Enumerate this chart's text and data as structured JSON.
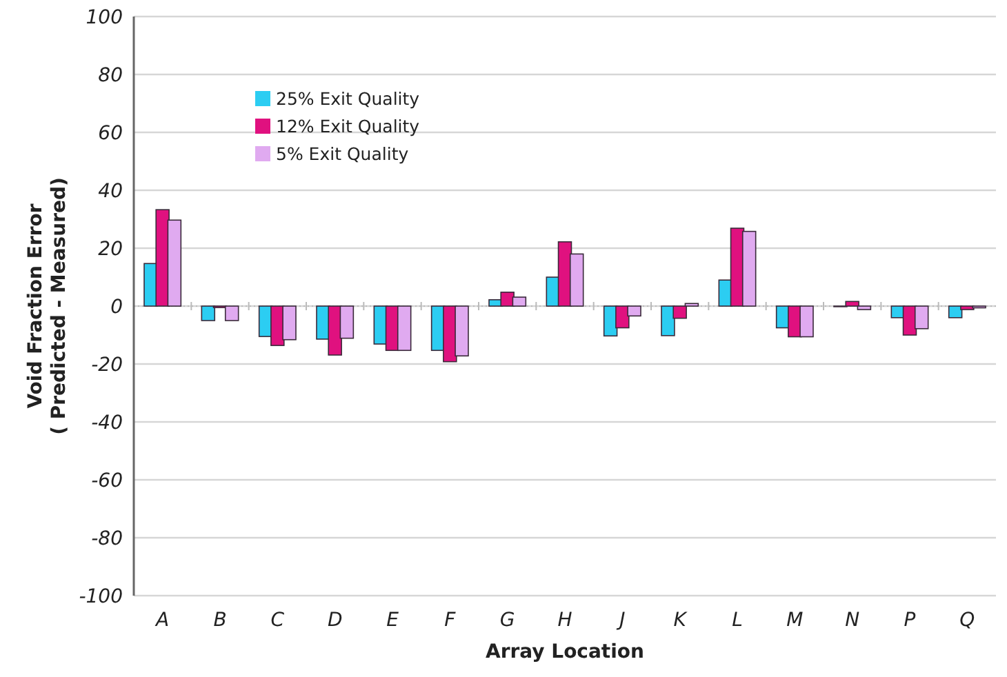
{
  "chart_data": {
    "type": "bar",
    "xlabel": "Array Location",
    "ylabel": "Void Fraction Error\n( Predicted - Measured)",
    "categories": [
      "A",
      "B",
      "C",
      "D",
      "E",
      "F",
      "G",
      "H",
      "J",
      "K",
      "L",
      "M",
      "N",
      "P",
      "Q"
    ],
    "series": [
      {
        "name": "25% Exit Quality",
        "color": "#2ccdf2",
        "values": [
          14.7,
          -5,
          -10.5,
          -11.4,
          -13.1,
          -15.3,
          2.2,
          10,
          -10.3,
          -10.2,
          9,
          -7.5,
          -0.2,
          -4,
          -4
        ]
      },
      {
        "name": "12% Exit Quality",
        "color": "#e0117f",
        "values": [
          33.3,
          -0.5,
          -13.6,
          -16.9,
          -15.3,
          -19.2,
          4.8,
          22.2,
          -7.5,
          -4.2,
          26.9,
          -10.6,
          1.6,
          -10,
          -1.2
        ]
      },
      {
        "name": "5% Exit Quality",
        "color": "#e0aaf0",
        "values": [
          29.7,
          -5,
          -11.6,
          -11.1,
          -15.3,
          -17.2,
          3.1,
          18,
          -3.4,
          0.9,
          25.8,
          -10.6,
          -1.2,
          -7.8,
          -0.6
        ]
      }
    ],
    "ylim": [
      -100,
      100
    ],
    "yticks": [
      -100,
      -80,
      -60,
      -40,
      -20,
      0,
      20,
      40,
      60,
      80,
      100
    ],
    "grid": "y",
    "legend": "top left",
    "ref_lines": [
      {
        "axis": "y",
        "value": 0,
        "color": "#bbbbbb",
        "line_style": "dotted"
      }
    ]
  }
}
